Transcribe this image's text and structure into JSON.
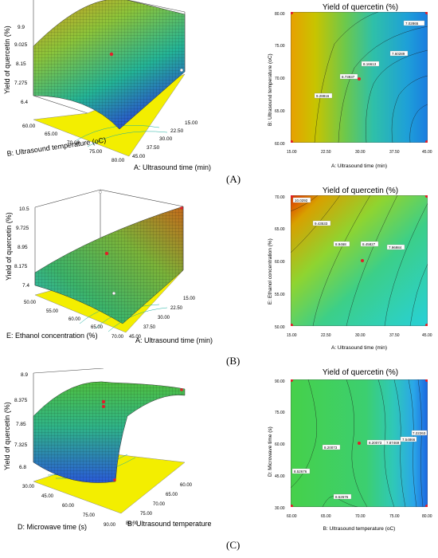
{
  "chart_data": [
    {
      "type": "surface",
      "panel": "A",
      "zlabel": "Yield of quercetin (%)",
      "z_ticks": [
        "9.9",
        "9.025",
        "8.15",
        "7.275",
        "6.4"
      ],
      "xlabel": "A: Ultrasound time (min)",
      "x_ticks": [
        "15.00",
        "22.50",
        "30.00",
        "37.50",
        "45.00"
      ],
      "ylabel": "B: Ultrasound temperature (oC)",
      "y_ticks": [
        "60.00",
        "65.00",
        "70.00",
        "75.00",
        "80.00"
      ]
    },
    {
      "type": "contour",
      "panel": "A",
      "title": "Yield of quercetin (%)",
      "xlabel": "A: Ultrasound time (min)",
      "ylabel": "B: Ultrasound temperature (oC)",
      "x_ticks": [
        "15.00",
        "22.50",
        "30.00",
        "37.50",
        "45.00"
      ],
      "y_ticks": [
        "60.00",
        "65.00",
        "70.00",
        "75.00",
        "80.00"
      ],
      "xlim": [
        15,
        45
      ],
      "ylim": [
        60,
        80
      ],
      "contour_labels": [
        "7.02865",
        "7.60289",
        "8.16613",
        "8.73937",
        "9.28816"
      ],
      "design_points": [
        [
          15,
          60
        ],
        [
          45,
          60
        ],
        [
          15,
          80
        ],
        [
          45,
          80
        ],
        [
          30,
          70
        ]
      ]
    },
    {
      "type": "surface",
      "panel": "B",
      "zlabel": "Yield of quercetin (%)",
      "z_ticks": [
        "10.5",
        "9.725",
        "8.95",
        "8.175",
        "7.4"
      ],
      "xlabel": "A: Ultrasound time (min)",
      "x_ticks": [
        "15.00",
        "22.50",
        "30.00",
        "37.50",
        "45.00"
      ],
      "ylabel": "E: Ethanol concentration (%)",
      "y_ticks": [
        "50.00",
        "55.00",
        "60.00",
        "65.00",
        "70.00"
      ]
    },
    {
      "type": "contour",
      "panel": "B",
      "title": "Yield of quercetin (%)",
      "xlabel": "A: Ultrasound time (min)",
      "ylabel": "E: Ethanol concentration (%)",
      "x_ticks": [
        "15.00",
        "22.50",
        "30.00",
        "37.50",
        "45.00"
      ],
      "y_ticks": [
        "50.00",
        "55.00",
        "60.00",
        "65.00",
        "70.00"
      ],
      "xlim": [
        15,
        45
      ],
      "ylim": [
        50,
        70
      ],
      "contour_labels": [
        "10.0292",
        "9.43533",
        "8.9468",
        "8.45827",
        "7.96984"
      ],
      "design_points": [
        [
          15,
          50
        ],
        [
          45,
          50
        ],
        [
          15,
          70
        ],
        [
          45,
          70
        ],
        [
          30,
          60
        ]
      ]
    },
    {
      "type": "surface",
      "panel": "C",
      "zlabel": "Yield of quercetin (%)",
      "z_ticks": [
        "8.9",
        "8.375",
        "7.85",
        "7.325",
        "6.8"
      ],
      "xlabel": "B: Ultrasound temperature (oC)",
      "x_ticks": [
        "60.00",
        "65.00",
        "70.00",
        "75.00",
        "80.00"
      ],
      "ylabel": "D: Microwave time (s)",
      "y_ticks": [
        "30.00",
        "45.00",
        "60.00",
        "75.00",
        "90.00"
      ]
    },
    {
      "type": "contour",
      "panel": "C",
      "title": "Yield of quercetin (%)",
      "xlabel": "B: Ultrasound temperature (oC)",
      "ylabel": "D: Microwave time (s)",
      "x_ticks": [
        "60.00",
        "65.00",
        "70.00",
        "75.00",
        "80.00"
      ],
      "y_ticks": [
        "30.00",
        "45.00",
        "60.00",
        "75.00",
        "90.00"
      ],
      "xlim": [
        60,
        80
      ],
      "ylim": [
        30,
        90
      ],
      "contour_labels": [
        "8.20073",
        "8.52676",
        "8.52676",
        "8.20073",
        "7.87469",
        "7.54866",
        "7.22263"
      ],
      "design_points": [
        [
          60,
          30
        ],
        [
          80,
          30
        ],
        [
          60,
          90
        ],
        [
          80,
          90
        ],
        [
          70,
          60
        ]
      ]
    }
  ],
  "captions": [
    "(A)",
    "(B)",
    "(C)"
  ],
  "colors": {
    "design_point": "#e0202a",
    "floor": "#f5f000",
    "floor_dark": "#c7c200"
  }
}
